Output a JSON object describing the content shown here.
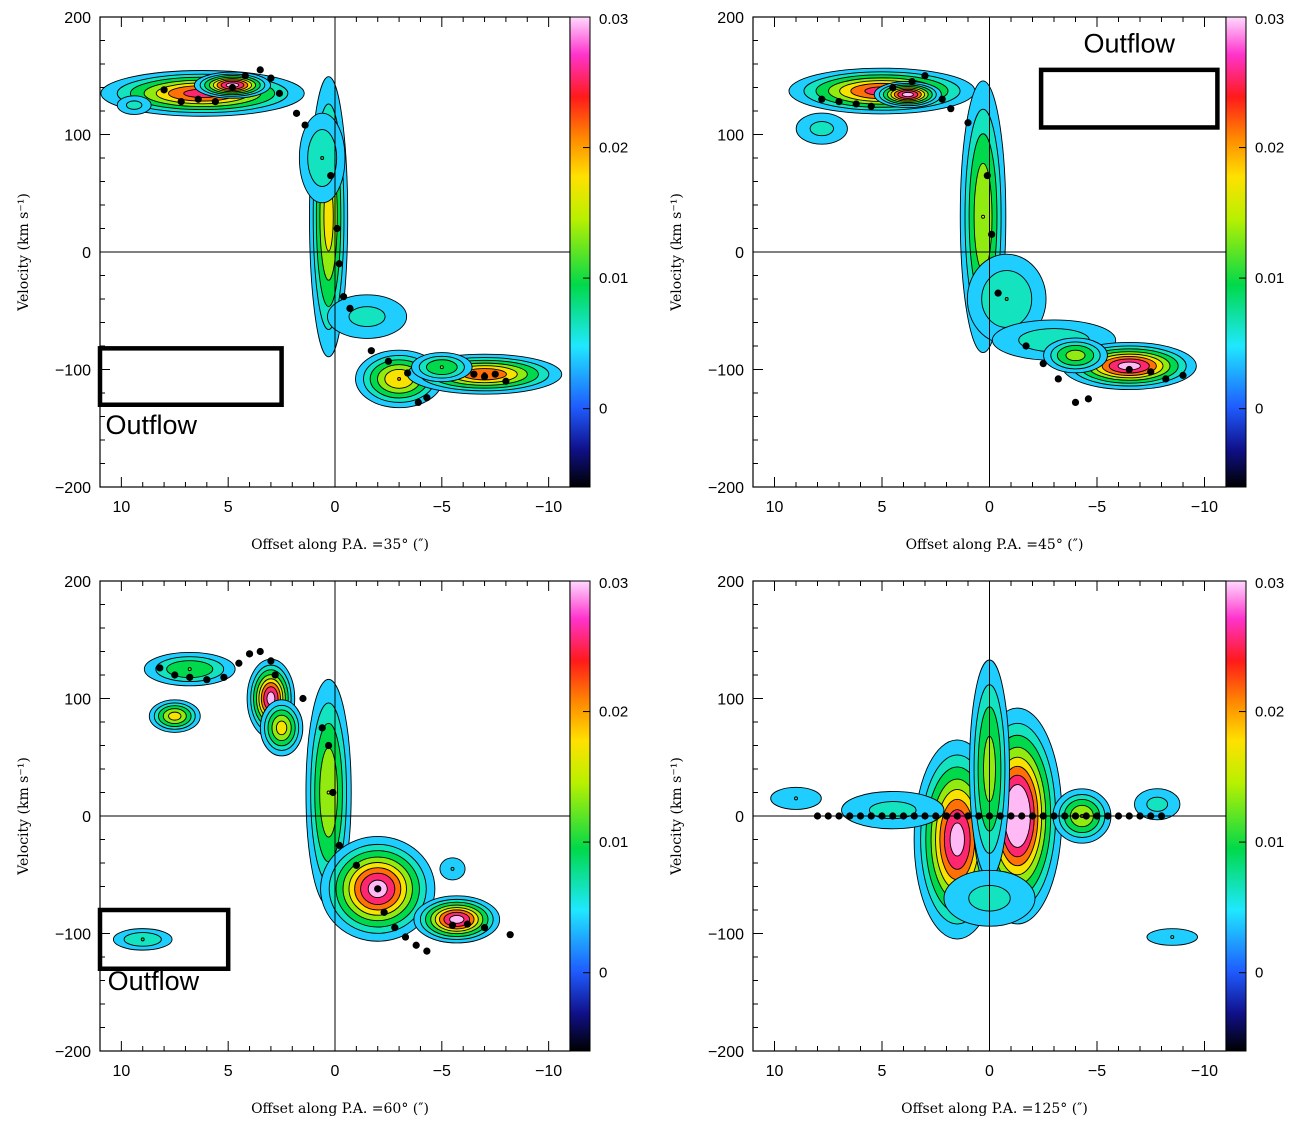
{
  "chart_data": [
    {
      "type": "heatmap",
      "panel": "top-left",
      "xlabel": "Offset along P.A. =35° (″)",
      "ylabel": "Velocity (km s⁻¹)",
      "xlim": [
        11,
        -11
      ],
      "ylim": [
        -200,
        200
      ],
      "xticks": [
        10,
        5,
        0,
        -5,
        -10
      ],
      "xtick_labels": [
        "10",
        "5",
        "0",
        "−5",
        "−10"
      ],
      "yticks": [
        200,
        100,
        0,
        -100,
        -200
      ],
      "ytick_labels": [
        "200",
        "100",
        "0",
        "−100",
        "−200"
      ],
      "colorbar": {
        "range": [
          -0.006,
          0.03
        ],
        "ticks": [
          0,
          0.01,
          0.02,
          0.03
        ],
        "tick_labels": [
          "0",
          "0.01",
          "0.02",
          "0.03"
        ]
      },
      "emission": [
        {
          "x": 6.2,
          "y": 135,
          "sx": 2.2,
          "sy": 9,
          "peak": 0.026
        },
        {
          "x": 4.8,
          "y": 142,
          "sx": 0.8,
          "sy": 5,
          "peak": 0.03
        },
        {
          "x": 9.4,
          "y": 125,
          "sx": 0.6,
          "sy": 6,
          "peak": 0.006
        },
        {
          "x": 0.3,
          "y": 30,
          "sx": 0.45,
          "sy": 60,
          "peak": 0.018
        },
        {
          "x": 0.6,
          "y": 80,
          "sx": 0.7,
          "sy": 25,
          "peak": 0.008
        },
        {
          "x": -1.5,
          "y": -55,
          "sx": 1.4,
          "sy": 14,
          "peak": 0.006
        },
        {
          "x": -3.0,
          "y": -108,
          "sx": 1.0,
          "sy": 12,
          "peak": 0.02
        },
        {
          "x": -7.0,
          "y": -104,
          "sx": 1.7,
          "sy": 8,
          "peak": 0.024
        },
        {
          "x": -5.0,
          "y": -98,
          "sx": 0.8,
          "sy": 7,
          "peak": 0.012
        }
      ],
      "rotation_curve": [
        [
          8.0,
          138
        ],
        [
          7.2,
          128
        ],
        [
          6.4,
          130
        ],
        [
          5.6,
          128
        ],
        [
          4.8,
          140
        ],
        [
          4.2,
          150
        ],
        [
          3.5,
          155
        ],
        [
          3.0,
          148
        ],
        [
          2.6,
          135
        ],
        [
          1.8,
          118
        ],
        [
          1.4,
          108
        ],
        [
          0.2,
          65
        ],
        [
          -0.1,
          20
        ],
        [
          -0.2,
          -10
        ],
        [
          -0.4,
          -38
        ],
        [
          -0.7,
          -48
        ],
        [
          -1.7,
          -84
        ],
        [
          -2.5,
          -93
        ],
        [
          -3.4,
          -103
        ],
        [
          -3.9,
          -128
        ],
        [
          -4.3,
          -124
        ],
        [
          -6.5,
          -104
        ],
        [
          -7.0,
          -106
        ],
        [
          -7.5,
          -104
        ],
        [
          -8.0,
          -110
        ]
      ],
      "outflow_box": {
        "x": [
          11,
          2.5
        ],
        "y": [
          -130,
          -82
        ]
      },
      "outflow_label": {
        "text": "Outflow",
        "x": 8.6,
        "y": -155
      }
    },
    {
      "type": "heatmap",
      "panel": "top-right",
      "xlabel": "Offset along P.A. =45° (″)",
      "ylabel": "Velocity (km s⁻¹)",
      "xlim": [
        11,
        -11
      ],
      "ylim": [
        -200,
        200
      ],
      "xticks": [
        10,
        5,
        0,
        -5,
        -10
      ],
      "xtick_labels": [
        "10",
        "5",
        "0",
        "−5",
        "−10"
      ],
      "yticks": [
        200,
        100,
        0,
        -100,
        -200
      ],
      "ytick_labels": [
        "200",
        "100",
        "0",
        "−100",
        "−200"
      ],
      "colorbar": {
        "range": [
          -0.006,
          0.03
        ],
        "ticks": [
          0,
          0.01,
          0.02,
          0.03
        ],
        "tick_labels": [
          "0",
          "0.01",
          "0.02",
          "0.03"
        ]
      },
      "emission": [
        {
          "x": 5.0,
          "y": 137,
          "sx": 2.0,
          "sy": 9,
          "peak": 0.026
        },
        {
          "x": 3.8,
          "y": 134,
          "sx": 0.7,
          "sy": 5,
          "peak": 0.03
        },
        {
          "x": 7.8,
          "y": 105,
          "sx": 0.9,
          "sy": 10,
          "peak": 0.006
        },
        {
          "x": 0.3,
          "y": 30,
          "sx": 0.55,
          "sy": 60,
          "peak": 0.016
        },
        {
          "x": -0.8,
          "y": -40,
          "sx": 1.2,
          "sy": 25,
          "peak": 0.008
        },
        {
          "x": -3.0,
          "y": -75,
          "sx": 2.0,
          "sy": 12,
          "peak": 0.007
        },
        {
          "x": -6.5,
          "y": -97,
          "sx": 1.4,
          "sy": 9,
          "peak": 0.03
        },
        {
          "x": -4.0,
          "y": -88,
          "sx": 0.8,
          "sy": 8,
          "peak": 0.014
        }
      ],
      "rotation_curve": [
        [
          7.8,
          130
        ],
        [
          7.0,
          128
        ],
        [
          6.2,
          126
        ],
        [
          5.5,
          124
        ],
        [
          4.5,
          140
        ],
        [
          3.6,
          145
        ],
        [
          3.0,
          150
        ],
        [
          2.2,
          130
        ],
        [
          1.8,
          122
        ],
        [
          1.0,
          110
        ],
        [
          0.1,
          65
        ],
        [
          -0.1,
          15
        ],
        [
          -0.4,
          -35
        ],
        [
          -1.7,
          -80
        ],
        [
          -2.5,
          -95
        ],
        [
          -3.2,
          -108
        ],
        [
          -4.0,
          -128
        ],
        [
          -4.6,
          -125
        ],
        [
          -6.5,
          -100
        ],
        [
          -7.5,
          -102
        ],
        [
          -8.2,
          -108
        ],
        [
          -9.0,
          -105
        ]
      ],
      "outflow_box": {
        "x": [
          -2.4,
          -10.6
        ],
        "y": [
          106,
          155
        ]
      },
      "outflow_label": {
        "text": "Outflow",
        "x": -6.5,
        "y": 170
      }
    },
    {
      "type": "heatmap",
      "panel": "bottom-left",
      "xlabel": "Offset along P.A. =60° (″)",
      "ylabel": "Velocity (km s⁻¹)",
      "xlim": [
        11,
        -11
      ],
      "ylim": [
        -200,
        200
      ],
      "xticks": [
        10,
        5,
        0,
        -5,
        -10
      ],
      "xtick_labels": [
        "10",
        "5",
        "0",
        "−5",
        "−10"
      ],
      "yticks": [
        200,
        100,
        0,
        -100,
        -200
      ],
      "ytick_labels": [
        "200",
        "100",
        "0",
        "−100",
        "−200"
      ],
      "colorbar": {
        "range": [
          -0.006,
          0.03
        ],
        "ticks": [
          0,
          0.01,
          0.02,
          0.03
        ],
        "tick_labels": [
          "0",
          "0.01",
          "0.02",
          "0.03"
        ]
      },
      "emission": [
        {
          "x": 3.0,
          "y": 100,
          "sx": 0.5,
          "sy": 15,
          "peak": 0.03
        },
        {
          "x": 2.5,
          "y": 75,
          "sx": 0.5,
          "sy": 12,
          "peak": 0.018
        },
        {
          "x": 6.8,
          "y": 125,
          "sx": 1.2,
          "sy": 8,
          "peak": 0.012
        },
        {
          "x": 7.5,
          "y": 85,
          "sx": 0.6,
          "sy": 7,
          "peak": 0.018
        },
        {
          "x": 0.3,
          "y": 20,
          "sx": 0.55,
          "sy": 50,
          "peak": 0.016
        },
        {
          "x": -2.0,
          "y": -62,
          "sx": 1.2,
          "sy": 20,
          "peak": 0.03
        },
        {
          "x": -5.7,
          "y": -88,
          "sx": 0.9,
          "sy": 9,
          "peak": 0.03
        },
        {
          "x": -5.5,
          "y": -45,
          "sx": 0.5,
          "sy": 8,
          "peak": 0.005
        },
        {
          "x": 9.0,
          "y": -105,
          "sx": 0.9,
          "sy": 6,
          "peak": 0.008
        }
      ],
      "rotation_curve": [
        [
          8.2,
          126
        ],
        [
          7.5,
          120
        ],
        [
          6.8,
          118
        ],
        [
          6.0,
          116
        ],
        [
          5.2,
          118
        ],
        [
          4.5,
          130
        ],
        [
          4.0,
          138
        ],
        [
          3.5,
          140
        ],
        [
          3.0,
          132
        ],
        [
          2.8,
          120
        ],
        [
          1.5,
          100
        ],
        [
          0.6,
          75
        ],
        [
          0.3,
          60
        ],
        [
          0.1,
          20
        ],
        [
          -0.2,
          -25
        ],
        [
          -1.0,
          -42
        ],
        [
          -2.0,
          -62
        ],
        [
          -2.3,
          -82
        ],
        [
          -2.8,
          -95
        ],
        [
          -3.3,
          -103
        ],
        [
          -3.8,
          -110
        ],
        [
          -4.3,
          -115
        ],
        [
          -5.5,
          -93
        ],
        [
          -6.2,
          -92
        ],
        [
          -7.0,
          -95
        ],
        [
          -8.2,
          -101
        ]
      ],
      "outflow_box": {
        "x": [
          11,
          5
        ],
        "y": [
          -130,
          -80
        ]
      },
      "outflow_label": {
        "text": "Outflow",
        "x": 8.5,
        "y": -148
      }
    },
    {
      "type": "heatmap",
      "panel": "bottom-right",
      "xlabel": "Offset along P.A. =125° (″)",
      "ylabel": "Velocity (km s⁻¹)",
      "xlim": [
        11,
        -11
      ],
      "ylim": [
        -200,
        200
      ],
      "xticks": [
        10,
        5,
        0,
        -5,
        -10
      ],
      "xtick_labels": [
        "10",
        "5",
        "0",
        "−5",
        "−10"
      ],
      "yticks": [
        200,
        100,
        0,
        -100,
        -200
      ],
      "ytick_labels": [
        "200",
        "100",
        "0",
        "−100",
        "−200"
      ],
      "colorbar": {
        "range": [
          -0.006,
          0.03
        ],
        "ticks": [
          0,
          0.01,
          0.02,
          0.03
        ],
        "tick_labels": [
          "0",
          "0.01",
          "0.02",
          "0.03"
        ]
      },
      "emission": [
        {
          "x": 1.5,
          "y": -20,
          "sx": 0.9,
          "sy": 38,
          "peak": 0.03
        },
        {
          "x": -1.3,
          "y": 0,
          "sx": 0.9,
          "sy": 40,
          "peak": 0.035
        },
        {
          "x": 0.0,
          "y": 40,
          "sx": 0.5,
          "sy": 50,
          "peak": 0.014
        },
        {
          "x": 4.5,
          "y": 5,
          "sx": 1.8,
          "sy": 12,
          "peak": 0.006
        },
        {
          "x": -4.3,
          "y": 0,
          "sx": 0.7,
          "sy": 12,
          "peak": 0.016
        },
        {
          "x": -7.8,
          "y": 10,
          "sx": 0.8,
          "sy": 10,
          "peak": 0.006
        },
        {
          "x": 9.0,
          "y": 15,
          "sx": 1.0,
          "sy": 8,
          "peak": 0.005
        },
        {
          "x": -8.5,
          "y": -103,
          "sx": 1.0,
          "sy": 6,
          "peak": 0.005
        },
        {
          "x": 0.0,
          "y": -70,
          "sx": 1.6,
          "sy": 18,
          "peak": 0.006
        }
      ],
      "rotation_curve": [
        [
          8.0,
          0
        ],
        [
          7.5,
          0
        ],
        [
          7.0,
          0
        ],
        [
          6.5,
          0
        ],
        [
          6.0,
          0
        ],
        [
          5.5,
          0
        ],
        [
          5.0,
          0
        ],
        [
          4.5,
          0
        ],
        [
          4.0,
          0
        ],
        [
          3.5,
          0
        ],
        [
          3.0,
          0
        ],
        [
          2.5,
          0
        ],
        [
          2.0,
          0
        ],
        [
          1.5,
          0
        ],
        [
          1.0,
          0
        ],
        [
          0.5,
          0
        ],
        [
          0.0,
          0
        ],
        [
          -0.5,
          0
        ],
        [
          -1.0,
          0
        ],
        [
          -1.5,
          0
        ],
        [
          -2.0,
          0
        ],
        [
          -2.5,
          0
        ],
        [
          -3.0,
          0
        ],
        [
          -3.5,
          0
        ],
        [
          -4.0,
          0
        ],
        [
          -4.5,
          0
        ],
        [
          -5.0,
          0
        ],
        [
          -5.5,
          0
        ],
        [
          -6.0,
          0
        ],
        [
          -6.5,
          0
        ],
        [
          -7.0,
          0
        ],
        [
          -7.5,
          0
        ],
        [
          -8.0,
          0
        ]
      ],
      "outflow_box": null,
      "outflow_label": null
    }
  ]
}
